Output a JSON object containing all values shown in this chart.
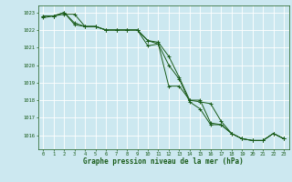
{
  "xlabel": "Graphe pression niveau de la mer (hPa)",
  "background_color": "#cce8f0",
  "grid_color": "#ffffff",
  "line_color": "#1a5c1a",
  "xlim": [
    -0.5,
    23.5
  ],
  "ylim": [
    1015.2,
    1023.4
  ],
  "yticks": [
    1016,
    1017,
    1018,
    1019,
    1020,
    1021,
    1022,
    1023
  ],
  "xticks": [
    0,
    1,
    2,
    3,
    4,
    5,
    6,
    7,
    8,
    9,
    10,
    11,
    12,
    13,
    14,
    15,
    16,
    17,
    18,
    19,
    20,
    21,
    22,
    23
  ],
  "line1": [
    1022.8,
    1022.8,
    1022.9,
    1022.9,
    1022.2,
    1022.2,
    1022.0,
    1022.0,
    1022.0,
    1022.0,
    1021.4,
    1021.3,
    1020.5,
    1019.3,
    1018.0,
    1017.9,
    1017.8,
    1016.8,
    1016.1,
    1015.8,
    1015.7,
    1015.7,
    1016.1,
    1015.8
  ],
  "line2": [
    1022.8,
    1022.8,
    1023.0,
    1022.3,
    1022.2,
    1022.2,
    1022.0,
    1022.0,
    1022.0,
    1022.0,
    1021.1,
    1021.2,
    1020.0,
    1019.2,
    1017.9,
    1017.5,
    1016.6,
    1016.6,
    1016.1,
    1015.8,
    1015.7,
    1015.7,
    1016.1,
    1015.8
  ],
  "line3": [
    1022.7,
    1022.8,
    1023.0,
    1022.4,
    1022.2,
    1022.2,
    1022.0,
    1022.0,
    1022.0,
    1022.0,
    1021.4,
    1021.2,
    1018.8,
    1018.8,
    1018.0,
    1018.0,
    1016.7,
    1016.6,
    1016.1,
    1015.8,
    1015.7,
    1015.7,
    1016.1,
    1015.8
  ],
  "tick_fontsize": 4.0,
  "xlabel_fontsize": 5.5,
  "marker_size": 2.8,
  "line_width": 0.7
}
